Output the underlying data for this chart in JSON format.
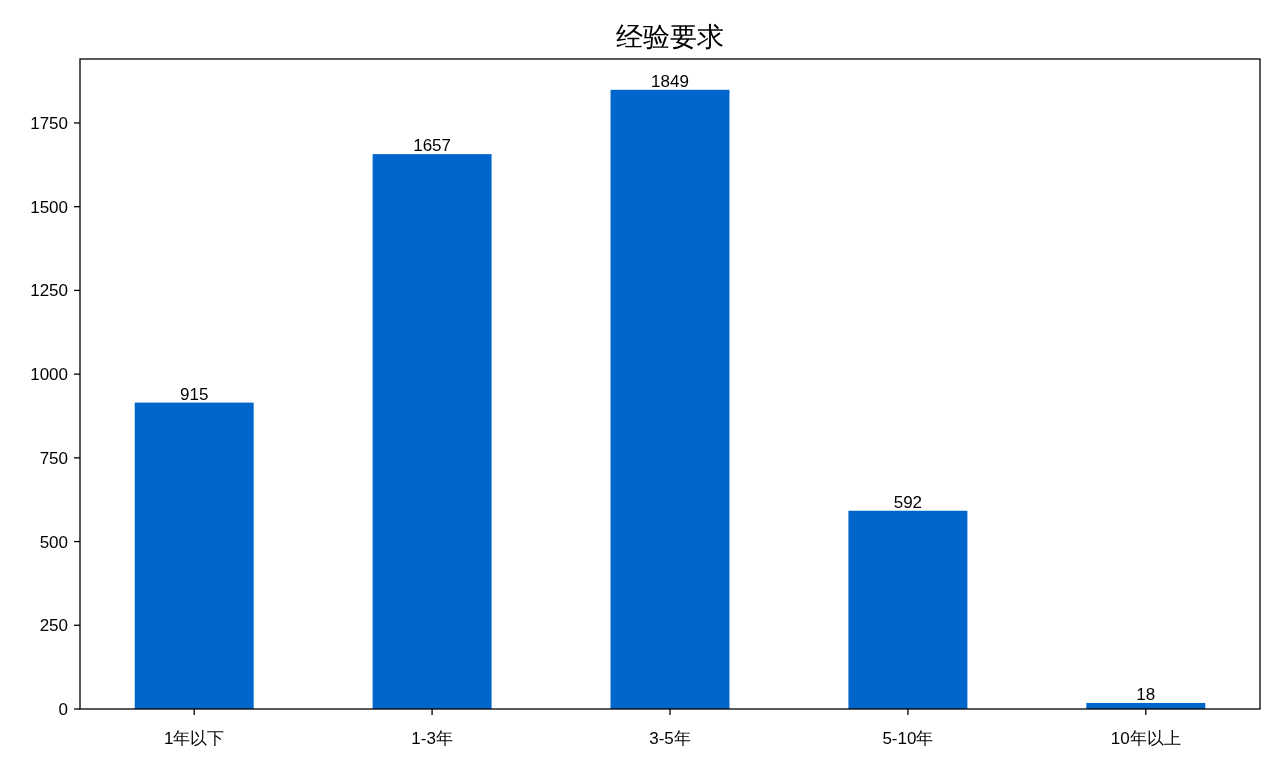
{
  "chart_data": {
    "type": "bar",
    "title": "经验要求",
    "categories": [
      "1年以下",
      "1-3年",
      "3-5年",
      "5-10年",
      "10年以上"
    ],
    "values": [
      915,
      1657,
      1849,
      592,
      18
    ],
    "color": "#0066cc",
    "ylim": [
      0,
      1941
    ],
    "yticks": [
      0,
      250,
      500,
      750,
      1000,
      1250,
      1500,
      1750
    ],
    "data_labels": true
  }
}
